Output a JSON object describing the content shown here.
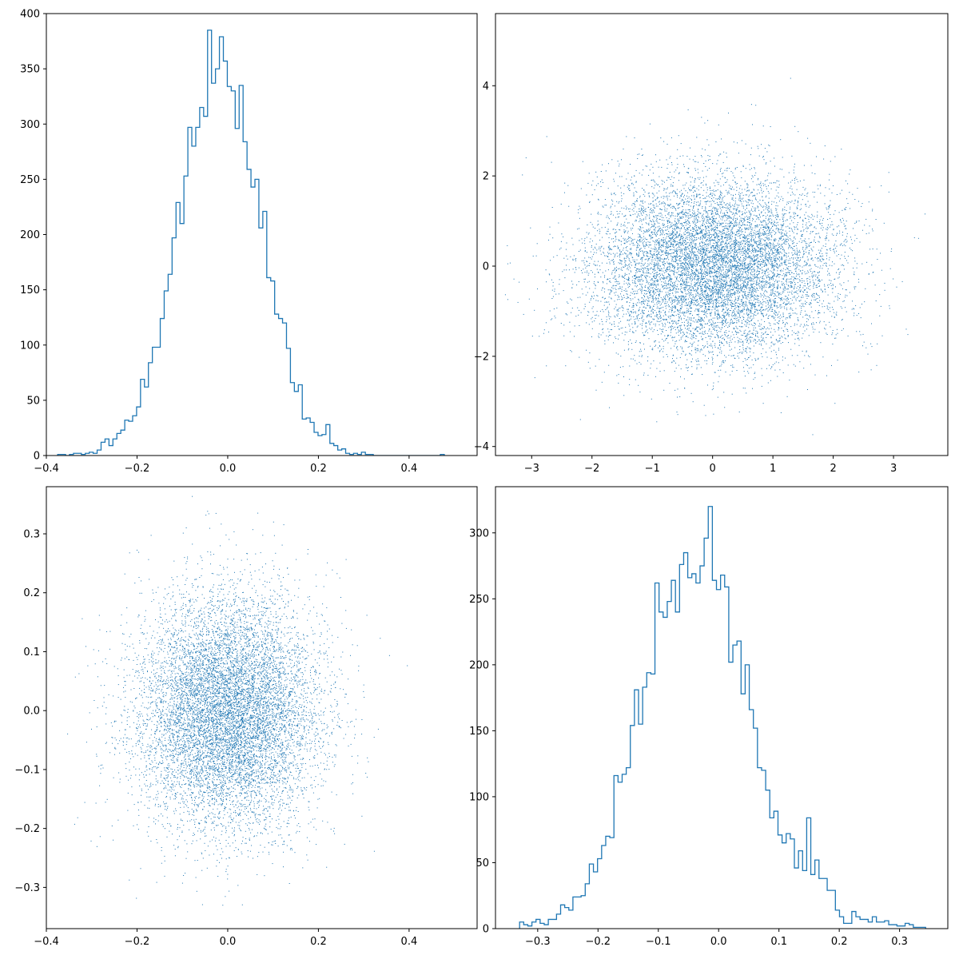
{
  "chart_data": [
    {
      "type": "histogram",
      "position": "top-left",
      "histtype": "step",
      "color": "#1f77b4",
      "xlim": [
        -0.4,
        0.55
      ],
      "ylim": [
        0,
        400
      ],
      "xticks": [
        -0.4,
        -0.2,
        0.0,
        0.2,
        0.4
      ],
      "yticks": [
        0,
        50,
        100,
        150,
        200,
        250,
        300,
        350,
        400
      ],
      "xtick_labels": [
        "−0.4",
        "−0.2",
        "0.0",
        "0.2",
        "0.4"
      ],
      "ytick_labels": [
        "0",
        "50",
        "100",
        "150",
        "200",
        "250",
        "300",
        "350",
        "400"
      ],
      "bin_start": -0.375,
      "bin_width": 0.0087,
      "counts": [
        1,
        1,
        0,
        1,
        2,
        2,
        1,
        2,
        3,
        2,
        5,
        12,
        15,
        9,
        15,
        20,
        23,
        32,
        31,
        36,
        44,
        69,
        62,
        84,
        98,
        98,
        124,
        149,
        164,
        197,
        229,
        210,
        253,
        297,
        280,
        297,
        315,
        307,
        385,
        337,
        350,
        379,
        357,
        334,
        330,
        296,
        335,
        284,
        259,
        243,
        250,
        206,
        221,
        161,
        158,
        128,
        124,
        120,
        97,
        66,
        58,
        64,
        33,
        34,
        30,
        21,
        18,
        19,
        28,
        11,
        9,
        5,
        6,
        2,
        1,
        2,
        1,
        3,
        1,
        1,
        0,
        0,
        0,
        0,
        0,
        0,
        0,
        0,
        0,
        0,
        0,
        0,
        0,
        0,
        0,
        0,
        0,
        1
      ],
      "title": "",
      "xlabel": "",
      "ylabel": ""
    },
    {
      "type": "scatter",
      "position": "top-right",
      "marker": "pixel",
      "color": "#1f77b4",
      "xlim": [
        -3.6,
        3.9
      ],
      "ylim": [
        -4.2,
        5.6
      ],
      "xticks": [
        -3,
        -2,
        -1,
        0,
        1,
        2,
        3
      ],
      "yticks": [
        -4,
        -2,
        0,
        2,
        4
      ],
      "xtick_labels": [
        "−3",
        "−2",
        "−1",
        "0",
        "1",
        "2",
        "3"
      ],
      "ytick_labels": [
        "−4",
        "−2",
        "0",
        "2",
        "4"
      ],
      "n_points": 10000,
      "distribution": {
        "x_mean": 0.0,
        "x_std": 1.0,
        "y_mean": 0.0,
        "y_std": 1.0
      },
      "title": "",
      "xlabel": "",
      "ylabel": ""
    },
    {
      "type": "scatter",
      "position": "bottom-left",
      "marker": "pixel",
      "color": "#1f77b4",
      "xlim": [
        -0.4,
        0.55
      ],
      "ylim": [
        -0.37,
        0.38
      ],
      "xticks": [
        -0.4,
        -0.2,
        0.0,
        0.2,
        0.4
      ],
      "yticks": [
        -0.3,
        -0.2,
        -0.1,
        0.0,
        0.1,
        0.2,
        0.3
      ],
      "xtick_labels": [
        "−0.4",
        "−0.2",
        "0.0",
        "0.2",
        "0.4"
      ],
      "ytick_labels": [
        "−0.3",
        "−0.2",
        "−0.1",
        "0.0",
        "0.1",
        "0.2",
        "0.3"
      ],
      "n_points": 10000,
      "distribution": {
        "x_mean": 0.0,
        "x_std": 0.1,
        "y_mean": 0.0,
        "y_std": 0.1
      },
      "title": "",
      "xlabel": "",
      "ylabel": ""
    },
    {
      "type": "histogram",
      "position": "bottom-right",
      "histtype": "step",
      "color": "#1f77b4",
      "xlim": [
        -0.37,
        0.38
      ],
      "ylim": [
        0,
        335
      ],
      "xticks": [
        -0.3,
        -0.2,
        -0.1,
        0.0,
        0.1,
        0.2,
        0.3
      ],
      "yticks": [
        0,
        50,
        100,
        150,
        200,
        250,
        300
      ],
      "xtick_labels": [
        "−0.3",
        "−0.2",
        "−0.1",
        "0.0",
        "0.1",
        "0.2",
        "0.3"
      ],
      "ytick_labels": [
        "0",
        "50",
        "100",
        "150",
        "200",
        "250",
        "300"
      ],
      "bin_start": -0.33,
      "bin_width": 0.0068,
      "counts": [
        5,
        3,
        2,
        5,
        7,
        4,
        3,
        7,
        7,
        11,
        18,
        16,
        14,
        24,
        24,
        25,
        34,
        49,
        43,
        53,
        63,
        70,
        69,
        116,
        111,
        117,
        122,
        154,
        181,
        155,
        183,
        194,
        193,
        262,
        240,
        236,
        248,
        264,
        240,
        276,
        285,
        266,
        269,
        262,
        275,
        296,
        320,
        264,
        257,
        268,
        259,
        202,
        215,
        218,
        178,
        200,
        166,
        152,
        122,
        120,
        105,
        84,
        89,
        71,
        65,
        72,
        68,
        46,
        59,
        44,
        84,
        41,
        52,
        38,
        38,
        29,
        29,
        14,
        9,
        4,
        4,
        13,
        9,
        7,
        7,
        5,
        9,
        5,
        5,
        6,
        3,
        3,
        2,
        2,
        4,
        3,
        1,
        1,
        1
      ]
    }
  ]
}
